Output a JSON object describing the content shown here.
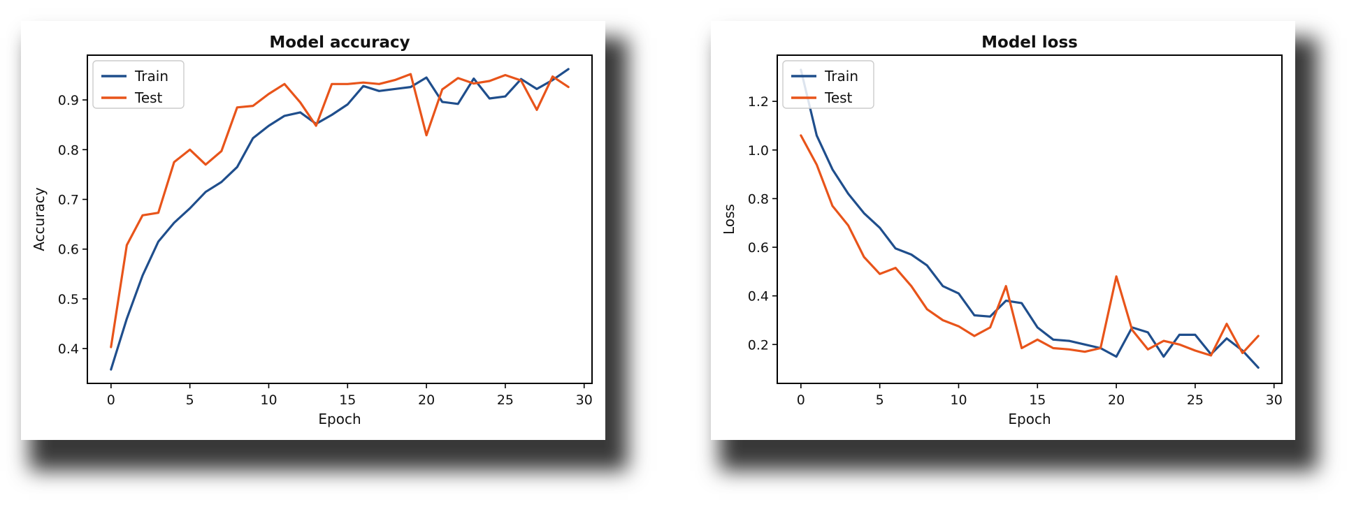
{
  "chart_data": [
    {
      "type": "line",
      "title": "Model accuracy",
      "xlabel": "Epoch",
      "ylabel": "Accuracy",
      "xlim": [
        -1.5,
        30.5
      ],
      "ylim": [
        0.33,
        0.99
      ],
      "xticks": [
        0,
        5,
        10,
        15,
        20,
        25,
        30
      ],
      "yticks": [
        0.4,
        0.5,
        0.6,
        0.7,
        0.8,
        0.9
      ],
      "ytick_labels": [
        "0.4",
        "0.5",
        "0.6",
        "0.7",
        "0.8",
        "0.9"
      ],
      "legend_position": "top-left",
      "x": [
        0,
        1,
        2,
        3,
        4,
        5,
        6,
        7,
        8,
        9,
        10,
        11,
        12,
        13,
        14,
        15,
        16,
        17,
        18,
        19,
        20,
        21,
        22,
        23,
        24,
        25,
        26,
        27,
        28,
        29
      ],
      "series": [
        {
          "name": "Train",
          "color": "#1f4e8c",
          "values": [
            0.358,
            0.46,
            0.547,
            0.615,
            0.653,
            0.682,
            0.715,
            0.735,
            0.765,
            0.823,
            0.848,
            0.868,
            0.875,
            0.852,
            0.87,
            0.891,
            0.928,
            0.918,
            0.922,
            0.926,
            0.945,
            0.896,
            0.892,
            0.943,
            0.903,
            0.907,
            0.942,
            0.922,
            0.94,
            0.962
          ]
        },
        {
          "name": "Test",
          "color": "#e8541a",
          "values": [
            0.403,
            0.608,
            0.668,
            0.673,
            0.775,
            0.8,
            0.77,
            0.797,
            0.885,
            0.888,
            0.912,
            0.932,
            0.895,
            0.848,
            0.932,
            0.932,
            0.935,
            0.932,
            0.94,
            0.952,
            0.829,
            0.921,
            0.944,
            0.933,
            0.938,
            0.95,
            0.939,
            0.88,
            0.947,
            0.926
          ]
        }
      ]
    },
    {
      "type": "line",
      "title": "Model loss",
      "xlabel": "Epoch",
      "ylabel": "Loss",
      "xlim": [
        -1.5,
        30.5
      ],
      "ylim": [
        0.04,
        1.39
      ],
      "xticks": [
        0,
        5,
        10,
        15,
        20,
        25,
        30
      ],
      "yticks": [
        0.2,
        0.4,
        0.6,
        0.8,
        1.0,
        1.2
      ],
      "ytick_labels": [
        "0.2",
        "0.4",
        "0.6",
        "0.8",
        "1.0",
        "1.2"
      ],
      "legend_position": "top-left",
      "x": [
        0,
        1,
        2,
        3,
        4,
        5,
        6,
        7,
        8,
        9,
        10,
        11,
        12,
        13,
        14,
        15,
        16,
        17,
        18,
        19,
        20,
        21,
        22,
        23,
        24,
        25,
        26,
        27,
        28,
        29
      ],
      "series": [
        {
          "name": "Train",
          "color": "#1f4e8c",
          "values": [
            1.33,
            1.06,
            0.92,
            0.82,
            0.74,
            0.68,
            0.595,
            0.57,
            0.525,
            0.44,
            0.41,
            0.32,
            0.315,
            0.38,
            0.37,
            0.27,
            0.22,
            0.215,
            0.2,
            0.185,
            0.15,
            0.27,
            0.25,
            0.15,
            0.24,
            0.24,
            0.16,
            0.225,
            0.175,
            0.105
          ]
        },
        {
          "name": "Test",
          "color": "#e8541a",
          "values": [
            1.06,
            0.94,
            0.77,
            0.69,
            0.56,
            0.49,
            0.515,
            0.44,
            0.345,
            0.3,
            0.275,
            0.235,
            0.27,
            0.44,
            0.185,
            0.22,
            0.185,
            0.18,
            0.17,
            0.185,
            0.48,
            0.26,
            0.18,
            0.215,
            0.2,
            0.175,
            0.155,
            0.285,
            0.165,
            0.235
          ]
        }
      ]
    }
  ]
}
